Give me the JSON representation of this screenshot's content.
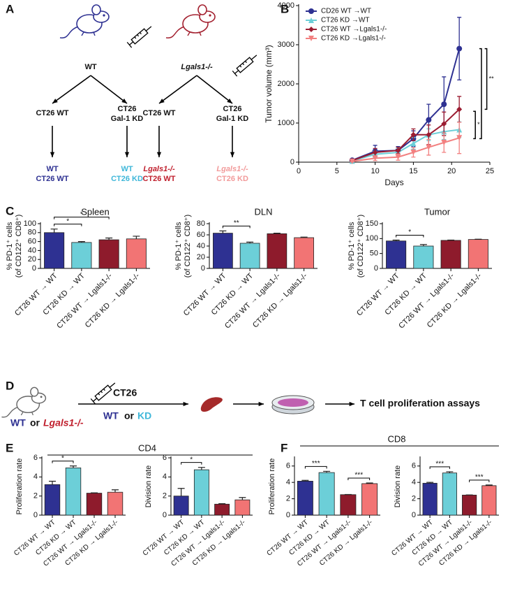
{
  "panels": [
    "A",
    "B",
    "C",
    "D",
    "E",
    "F"
  ],
  "diagram_a": {
    "groups": [
      {
        "host": "WT",
        "host_color": "#2e3192",
        "arms": [
          {
            "cells": [
              "CT26 WT"
            ],
            "outcome": [
              "WT",
              "CT26 WT"
            ],
            "color": "#2e3192"
          },
          {
            "cells": [
              "CT26",
              "Gal-1 KD"
            ],
            "outcome": [
              "WT",
              "CT26 KD"
            ],
            "color": "#3fb7d9"
          }
        ]
      },
      {
        "host": "Lgals1-/-",
        "host_color": "#a3202f",
        "arms": [
          {
            "cells": [
              "CT26 WT"
            ],
            "outcome": [
              "Lgals1-/-",
              "CT26 WT"
            ],
            "color": "#c0202e"
          },
          {
            "cells": [
              "CT26",
              "Gal-1 KD"
            ],
            "outcome": [
              "Lgals1-/-",
              "CT26 KD"
            ],
            "color": "#f29a9a"
          }
        ]
      }
    ]
  },
  "diagram_d": {
    "injection": "CT26",
    "tumor_options": [
      "WT",
      "or",
      "KD"
    ],
    "host_options": [
      "WT",
      "or",
      "Lgals1-/-"
    ],
    "readout": "T cell proliferation assays"
  },
  "groups": [
    {
      "label": "CD4",
      "charts": [
        4,
        5
      ]
    },
    {
      "label": "CD8",
      "charts": [
        6,
        7
      ]
    }
  ],
  "chart_data": [
    {
      "type": "line",
      "xlabel": "Days",
      "ylabel": "Tumor volume (mm³)",
      "x": [
        7,
        10,
        13,
        15,
        17,
        19,
        21
      ],
      "xlim": [
        0,
        25
      ],
      "xticks": [
        0,
        5,
        10,
        15,
        20,
        25
      ],
      "ylim": [
        0,
        4000
      ],
      "yticks": [
        0,
        1000,
        2000,
        3000,
        4000
      ],
      "legend": "upper left",
      "series": [
        {
          "name": "CD26 WT →WT",
          "color": "#2e3192",
          "marker": "circle",
          "values": [
            50,
            280,
            300,
            600,
            1080,
            1480,
            2900
          ],
          "errors": [
            20,
            150,
            100,
            200,
            400,
            700,
            800
          ]
        },
        {
          "name": "CT26 KD →WT",
          "color": "#6ccfd8",
          "marker": "triangle",
          "values": [
            30,
            200,
            250,
            480,
            700,
            780,
            830
          ],
          "errors": [
            20,
            80,
            100,
            150,
            150,
            200,
            200
          ]
        },
        {
          "name": "CT26 WT →Lgals1-/-",
          "color": "#9b1c31",
          "marker": "diamond",
          "values": [
            40,
            250,
            300,
            700,
            700,
            980,
            1350
          ],
          "errors": [
            20,
            100,
            80,
            150,
            250,
            300,
            330
          ]
        },
        {
          "name": "CT26 KD →Lgals1-/-",
          "color": "#f28080",
          "marker": "triangle-down",
          "values": [
            20,
            100,
            130,
            250,
            380,
            500,
            620
          ],
          "errors": [
            10,
            60,
            80,
            120,
            200,
            250,
            400
          ]
        }
      ],
      "significance": [
        {
          "label": "*",
          "range": [
            600,
            1300
          ]
        },
        {
          "range": [
            600,
            2900
          ]
        },
        {
          "label": "**",
          "range": [
            1350,
            2900
          ]
        }
      ]
    },
    {
      "type": "bar",
      "title": "Spleen",
      "ylabel": [
        "% PD-1⁺ cells",
        "(of CD122⁺ CD8⁺)"
      ],
      "categories": [
        "CT26 WT → WT",
        "CT26 KD → WT",
        "CT26 WT → Lgals1-/-",
        "CT26 KD → Lgals1-/-"
      ],
      "colors": [
        "#2e3192",
        "#6ccfd8",
        "#8e1b2c",
        "#f27474"
      ],
      "values": [
        80,
        58,
        64,
        66
      ],
      "errors": [
        8,
        2,
        4,
        6
      ],
      "ylim": [
        0,
        100
      ],
      "yticks": [
        0,
        20,
        40,
        60,
        80,
        100
      ],
      "significance": [
        {
          "between": [
            0,
            1
          ],
          "label": "*"
        },
        {
          "between": [
            0,
            2
          ],
          "label": "*"
        }
      ]
    },
    {
      "type": "bar",
      "title": "DLN",
      "ylabel": [
        "% PD-1⁺ cells",
        "(of CD122⁺ CD8⁺)"
      ],
      "categories": [
        "CT26 WT → WT",
        "CT26 KD → WT",
        "CT26 WT → Lgals1-/-",
        "CT26 KD → Lgals1-/-"
      ],
      "colors": [
        "#2e3192",
        "#6ccfd8",
        "#8e1b2c",
        "#f27474"
      ],
      "values": [
        63,
        45,
        62,
        55
      ],
      "errors": [
        4,
        2,
        1,
        1
      ],
      "ylim": [
        0,
        80
      ],
      "yticks": [
        0,
        20,
        40,
        60,
        80
      ],
      "significance": [
        {
          "between": [
            0,
            1
          ],
          "label": "**"
        }
      ]
    },
    {
      "type": "bar",
      "title": "Tumor",
      "ylabel": [
        "% PD-1⁺ cells",
        "(of CD122⁺ CD8⁺)"
      ],
      "categories": [
        "CT26 WT → WT",
        "CT26 KD → WT",
        "CT26 WT → Lgals1-/-",
        "CT26 KD → Lgals1-/-"
      ],
      "colors": [
        "#2e3192",
        "#6ccfd8",
        "#8e1b2c",
        "#f27474"
      ],
      "values": [
        92,
        75,
        94,
        97
      ],
      "errors": [
        3,
        5,
        1,
        1
      ],
      "ylim": [
        0,
        150
      ],
      "yticks": [
        0,
        50,
        100,
        150
      ],
      "significance": [
        {
          "between": [
            0,
            1
          ],
          "label": "*"
        }
      ]
    },
    {
      "type": "bar",
      "ylabel": [
        "Proliferation rate"
      ],
      "categories": [
        "CT26 WT → WT",
        "CT26 KD → WT",
        "CT26 WT → Lgals1-/-",
        "CT26 KD → Lgals1-/-"
      ],
      "colors": [
        "#2e3192",
        "#6ccfd8",
        "#8e1b2c",
        "#f27474"
      ],
      "values": [
        3.2,
        4.95,
        2.3,
        2.4
      ],
      "errors": [
        0.35,
        0.2,
        0.03,
        0.25
      ],
      "ylim": [
        0,
        6
      ],
      "yticks": [
        0,
        2,
        4,
        6
      ],
      "significance": [
        {
          "between": [
            0,
            1
          ],
          "label": "*"
        }
      ]
    },
    {
      "type": "bar",
      "ylabel": [
        "Division rate"
      ],
      "categories": [
        "CT26 WT → WT",
        "CT26 KD → WT",
        "CT26 WT → Lgals1-/-",
        "CT26 KD → Lgals1-/-"
      ],
      "colors": [
        "#2e3192",
        "#6ccfd8",
        "#8e1b2c",
        "#f27474"
      ],
      "values": [
        2.0,
        4.75,
        1.15,
        1.6
      ],
      "errors": [
        0.8,
        0.25,
        0.05,
        0.25
      ],
      "ylim": [
        0,
        6
      ],
      "yticks": [
        0,
        2,
        4,
        6
      ],
      "significance": [
        {
          "between": [
            0,
            1
          ],
          "label": "*"
        }
      ]
    },
    {
      "type": "bar",
      "ylabel": [
        "Proliferation rate"
      ],
      "categories": [
        "CT26 WT → WT",
        "CT26 KD → WT",
        "CT26 WT → Lgals1-/-",
        "CT26 KD → Lgals1-/-"
      ],
      "colors": [
        "#2e3192",
        "#6ccfd8",
        "#8e1b2c",
        "#f27474"
      ],
      "values": [
        4.15,
        5.2,
        2.5,
        3.85
      ],
      "errors": [
        0.1,
        0.15,
        0.02,
        0.08
      ],
      "ylim": [
        0,
        7
      ],
      "yticks": [
        0,
        2,
        4,
        6
      ],
      "significance": [
        {
          "between": [
            0,
            1
          ],
          "label": "***"
        },
        {
          "between": [
            2,
            3
          ],
          "label": "***"
        }
      ]
    },
    {
      "type": "bar",
      "ylabel": [
        "Division rate"
      ],
      "categories": [
        "CT26 WT → WT",
        "CT26 KD → WT",
        "CT26 WT → Lgals1-/-",
        "CT26 KD → Lgals1-/-"
      ],
      "colors": [
        "#2e3192",
        "#6ccfd8",
        "#8e1b2c",
        "#f27474"
      ],
      "values": [
        3.9,
        5.15,
        2.45,
        3.6
      ],
      "errors": [
        0.1,
        0.15,
        0.02,
        0.08
      ],
      "ylim": [
        0,
        7
      ],
      "yticks": [
        0,
        2,
        4,
        6
      ],
      "significance": [
        {
          "between": [
            0,
            1
          ],
          "label": "***"
        },
        {
          "between": [
            2,
            3
          ],
          "label": "***"
        }
      ]
    }
  ]
}
